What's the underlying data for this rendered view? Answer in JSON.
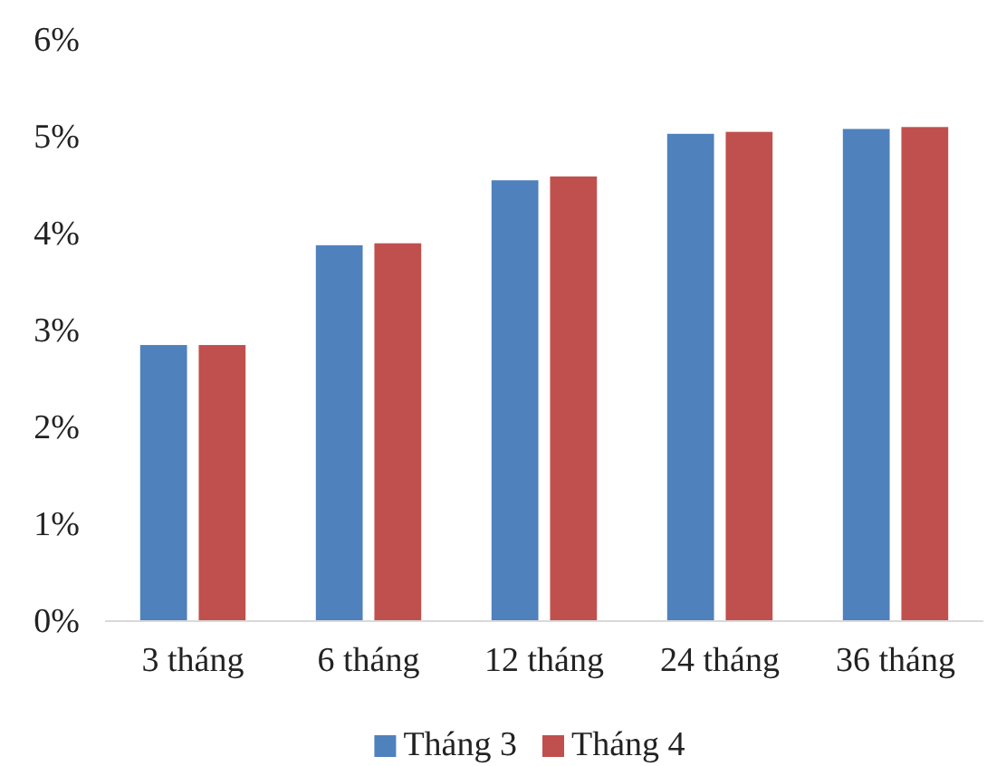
{
  "chart_data": {
    "type": "bar",
    "categories": [
      "3 tháng",
      "6 tháng",
      "12 tháng",
      "24 tháng",
      "36 tháng"
    ],
    "series": [
      {
        "name": "Tháng 3",
        "color": "#4f81bd",
        "values": [
          2.85,
          3.88,
          4.55,
          5.03,
          5.08
        ]
      },
      {
        "name": "Tháng 4",
        "color": "#c0504d",
        "values": [
          2.85,
          3.9,
          4.59,
          5.05,
          5.1
        ]
      }
    ],
    "ylim": [
      0,
      6
    ],
    "yticks": [
      {
        "value": 0,
        "label": "0%"
      },
      {
        "value": 1,
        "label": "1%"
      },
      {
        "value": 2,
        "label": "2%"
      },
      {
        "value": 3,
        "label": "3%"
      },
      {
        "value": 4,
        "label": "4%"
      },
      {
        "value": 5,
        "label": "5%"
      },
      {
        "value": 6,
        "label": "6%"
      }
    ],
    "grid": false,
    "legend": "bottom"
  }
}
